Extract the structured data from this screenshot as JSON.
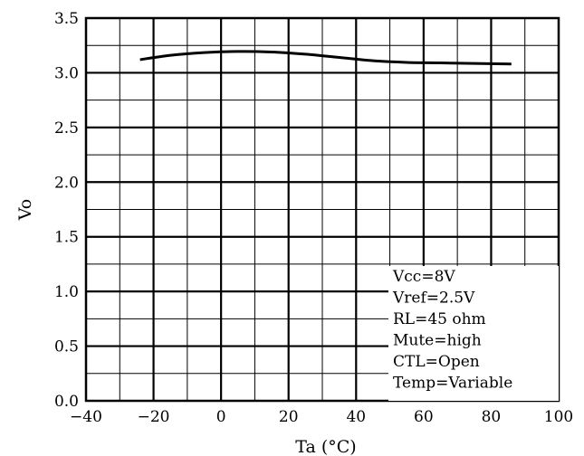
{
  "chart_data": {
    "type": "line",
    "title": "",
    "xlabel": "Ta (°C)",
    "ylabel": "Vo",
    "xlim": [
      -40,
      100
    ],
    "ylim": [
      0.0,
      3.5
    ],
    "x_ticks": [
      "−40",
      "−20",
      "0",
      "20",
      "40",
      "60",
      "80",
      "100"
    ],
    "y_ticks": [
      "0.0",
      "0.5",
      "1.0",
      "1.5",
      "2.0",
      "2.5",
      "3.0",
      "3.5"
    ],
    "grid": true,
    "series": [
      {
        "x": [
          -24,
          -15,
          -5,
          5,
          15,
          25,
          35,
          45,
          55,
          65,
          75,
          86
        ],
        "y": [
          3.12,
          3.16,
          3.185,
          3.195,
          3.19,
          3.17,
          3.14,
          3.11,
          3.095,
          3.09,
          3.085,
          3.08
        ]
      }
    ],
    "annotations": [
      "Vcc=8V",
      "Vref=2.5V",
      "RL=45 ohm",
      "Mute=high",
      "CTL=Open",
      "Temp=Variable"
    ]
  }
}
